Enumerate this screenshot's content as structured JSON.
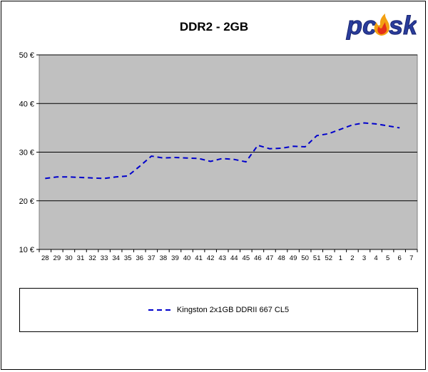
{
  "chart_data": {
    "type": "line",
    "title": "DDR2 - 2GB",
    "xlabel": "",
    "ylabel": "",
    "categories": [
      "28",
      "29",
      "30",
      "31",
      "32",
      "33",
      "34",
      "35",
      "36",
      "37",
      "38",
      "39",
      "40",
      "41",
      "42",
      "43",
      "44",
      "45",
      "46",
      "47",
      "48",
      "49",
      "50",
      "51",
      "52",
      "1",
      "2",
      "3",
      "4",
      "5",
      "6",
      "7"
    ],
    "ylim": [
      10,
      50
    ],
    "yticks": [
      "10 €",
      "20 €",
      "30 €",
      "40 €",
      "50 €"
    ],
    "ytick_values": [
      10,
      20,
      30,
      40,
      50
    ],
    "grid": true,
    "legend": "bottom",
    "series": [
      {
        "name": "Kingston 2x1GB DDRII 667 CL5",
        "color": "#0000cc",
        "dash": "dashed",
        "values": [
          24.6,
          24.9,
          24.9,
          24.8,
          24.7,
          24.6,
          24.9,
          25.1,
          27.1,
          29.2,
          28.8,
          28.9,
          28.8,
          28.7,
          28.1,
          28.7,
          28.5,
          28.0,
          31.4,
          30.7,
          30.8,
          31.2,
          31.1,
          33.4,
          33.8,
          34.7,
          35.6,
          36.0,
          35.8,
          35.4,
          35.0,
          null
        ]
      }
    ]
  },
  "logo": {
    "text": "pcosk"
  }
}
